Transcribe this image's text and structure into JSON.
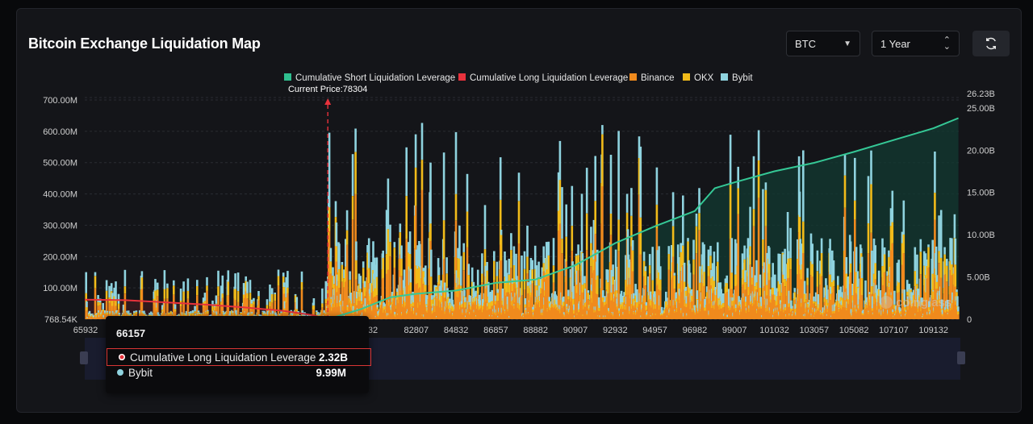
{
  "title": "Bitcoin Exchange Liquidation Map",
  "controls": {
    "coin": "BTC",
    "range": "1 Year"
  },
  "legend": [
    {
      "label": "Cumulative Short Liquidation Leverage",
      "color": "#2fbf8f"
    },
    {
      "label": "Cumulative Long Liquidation Leverage",
      "color": "#e8323c"
    },
    {
      "label": "Binance",
      "color": "#f08a1d"
    },
    {
      "label": "OKX",
      "color": "#f1bb1a"
    },
    {
      "label": "Bybit",
      "color": "#8fd3df"
    }
  ],
  "current_price_label": "Current Price:78304",
  "watermark": "coinglass",
  "tooltip": {
    "price": "66157",
    "rows": [
      {
        "label": "Cumulative Long Liquidation Leverage",
        "value": "2.32B",
        "color": "#e8323c",
        "highlight": true
      },
      {
        "label": "Bybit",
        "value": "9.99M",
        "color": "#8fd3df",
        "highlight": false
      }
    ]
  },
  "chart_data": {
    "type": "bar",
    "title": "Bitcoin Exchange Liquidation Map",
    "current_price": 78304,
    "x_tick_labels": [
      "65932",
      "82807",
      "84832",
      "86857",
      "88882",
      "90907",
      "92932",
      "94957",
      "96982",
      "99007",
      "101032",
      "103057",
      "105082",
      "107107",
      "109132"
    ],
    "hidden_tick_label_fragment": "32",
    "y_left_ticks": [
      "768.54K",
      "100.00M",
      "200.00M",
      "300.00M",
      "400.00M",
      "500.00M",
      "600.00M",
      "700.00M"
    ],
    "y_right_ticks": [
      "0",
      "5.00B",
      "10.00B",
      "15.00B",
      "20.00B",
      "25.00B",
      "26.23B"
    ],
    "y_left_range": [
      0,
      700000000
    ],
    "y_right_range": [
      0,
      26230000000
    ],
    "x_range": [
      65932,
      110500
    ],
    "stacked_series": [
      "Binance",
      "OKX",
      "Bybit"
    ],
    "series": [
      {
        "name": "Cumulative Short Liquidation Leverage",
        "axis": "right",
        "points": [
          [
            78304,
            0
          ],
          [
            80000,
            1.2
          ],
          [
            81500,
            2.6
          ],
          [
            82807,
            3.0
          ],
          [
            84832,
            3.4
          ],
          [
            86857,
            4.3
          ],
          [
            88882,
            4.7
          ],
          [
            90907,
            6.4
          ],
          [
            92932,
            9.0
          ],
          [
            94957,
            11.0
          ],
          [
            96982,
            12.8
          ],
          [
            98000,
            15.5
          ],
          [
            99007,
            16.2
          ],
          [
            101032,
            17.5
          ],
          [
            103057,
            18.5
          ],
          [
            105082,
            19.8
          ],
          [
            107107,
            21.2
          ],
          [
            109132,
            22.6
          ],
          [
            110400,
            23.8
          ]
        ]
      },
      {
        "name": "Cumulative Long Liquidation Leverage",
        "axis": "right",
        "points": [
          [
            65932,
            2.32
          ],
          [
            68000,
            2.25
          ],
          [
            70000,
            2.0
          ],
          [
            72000,
            1.75
          ],
          [
            74000,
            1.4
          ],
          [
            76000,
            1.0
          ],
          [
            77500,
            0.5
          ],
          [
            78304,
            0
          ]
        ]
      }
    ],
    "grid": true,
    "legend_position": "top"
  }
}
